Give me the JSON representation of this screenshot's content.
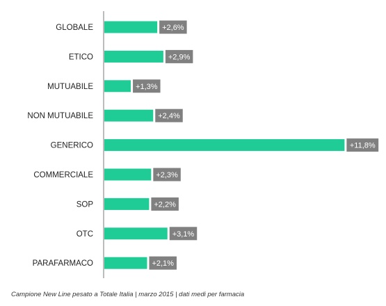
{
  "chart_data": {
    "type": "bar",
    "orientation": "horizontal",
    "categories": [
      "GLOBALE",
      "ETICO",
      "MUTUABILE",
      "NON MUTUABILE",
      "GENERICO",
      "COMMERCIALE",
      "SOP",
      "OTC",
      "PARAFARMACO"
    ],
    "values": [
      2.6,
      2.9,
      1.3,
      2.4,
      11.8,
      2.3,
      2.2,
      3.1,
      2.1
    ],
    "value_labels": [
      "+2,6%",
      "+2,9%",
      "+1,3%",
      "+2,4%",
      "+11,8%",
      "+2,3%",
      "+2,2%",
      "+3,1%",
      "+2,1%"
    ],
    "title": "",
    "xlabel": "",
    "ylabel": "",
    "xlim": [
      0,
      12.3
    ],
    "grid": false,
    "legend": "none",
    "bar_color": "#1fcc96",
    "label_box_color": "#808080",
    "axis_color": "#a6a6a6"
  },
  "footnote": "Campione New Line pesato a Totale Italia | marzo 2015 | dati medi per farmacia"
}
